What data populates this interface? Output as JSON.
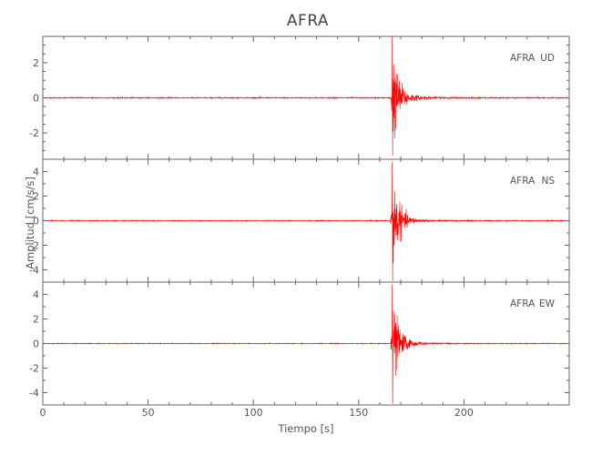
{
  "chart_data": {
    "type": "line",
    "title": "AFRA",
    "xlabel": "Tiempo [s]",
    "ylabel": "Amplitud [cm/s/s]",
    "xlim": [
      0,
      250
    ],
    "x_ticks": [
      0,
      50,
      100,
      150,
      200
    ],
    "grid": false,
    "color": "#ff0000",
    "event_onset_s": 165,
    "panels": [
      {
        "label_station": "AFRA",
        "label_component": "UD",
        "ylim": [
          -3.5,
          3.5
        ],
        "y_ticks": [
          -2,
          0,
          2
        ],
        "peak_positive": 3.5,
        "peak_negative": -3.3,
        "peak_time_s": 166
      },
      {
        "label_station": "AFRA",
        "label_component": "NS",
        "ylim": [
          -5,
          5
        ],
        "y_ticks": [
          -4,
          -2,
          0,
          2,
          4
        ],
        "peak_positive": 4.8,
        "peak_negative": -4.9,
        "peak_time_s": 166
      },
      {
        "label_station": "AFRA",
        "label_component": "EW",
        "ylim": [
          -5,
          5
        ],
        "y_ticks": [
          -4,
          -2,
          0,
          2,
          4
        ],
        "peak_positive": 4.8,
        "peak_negative": -4.9,
        "peak_time_s": 166
      }
    ]
  }
}
